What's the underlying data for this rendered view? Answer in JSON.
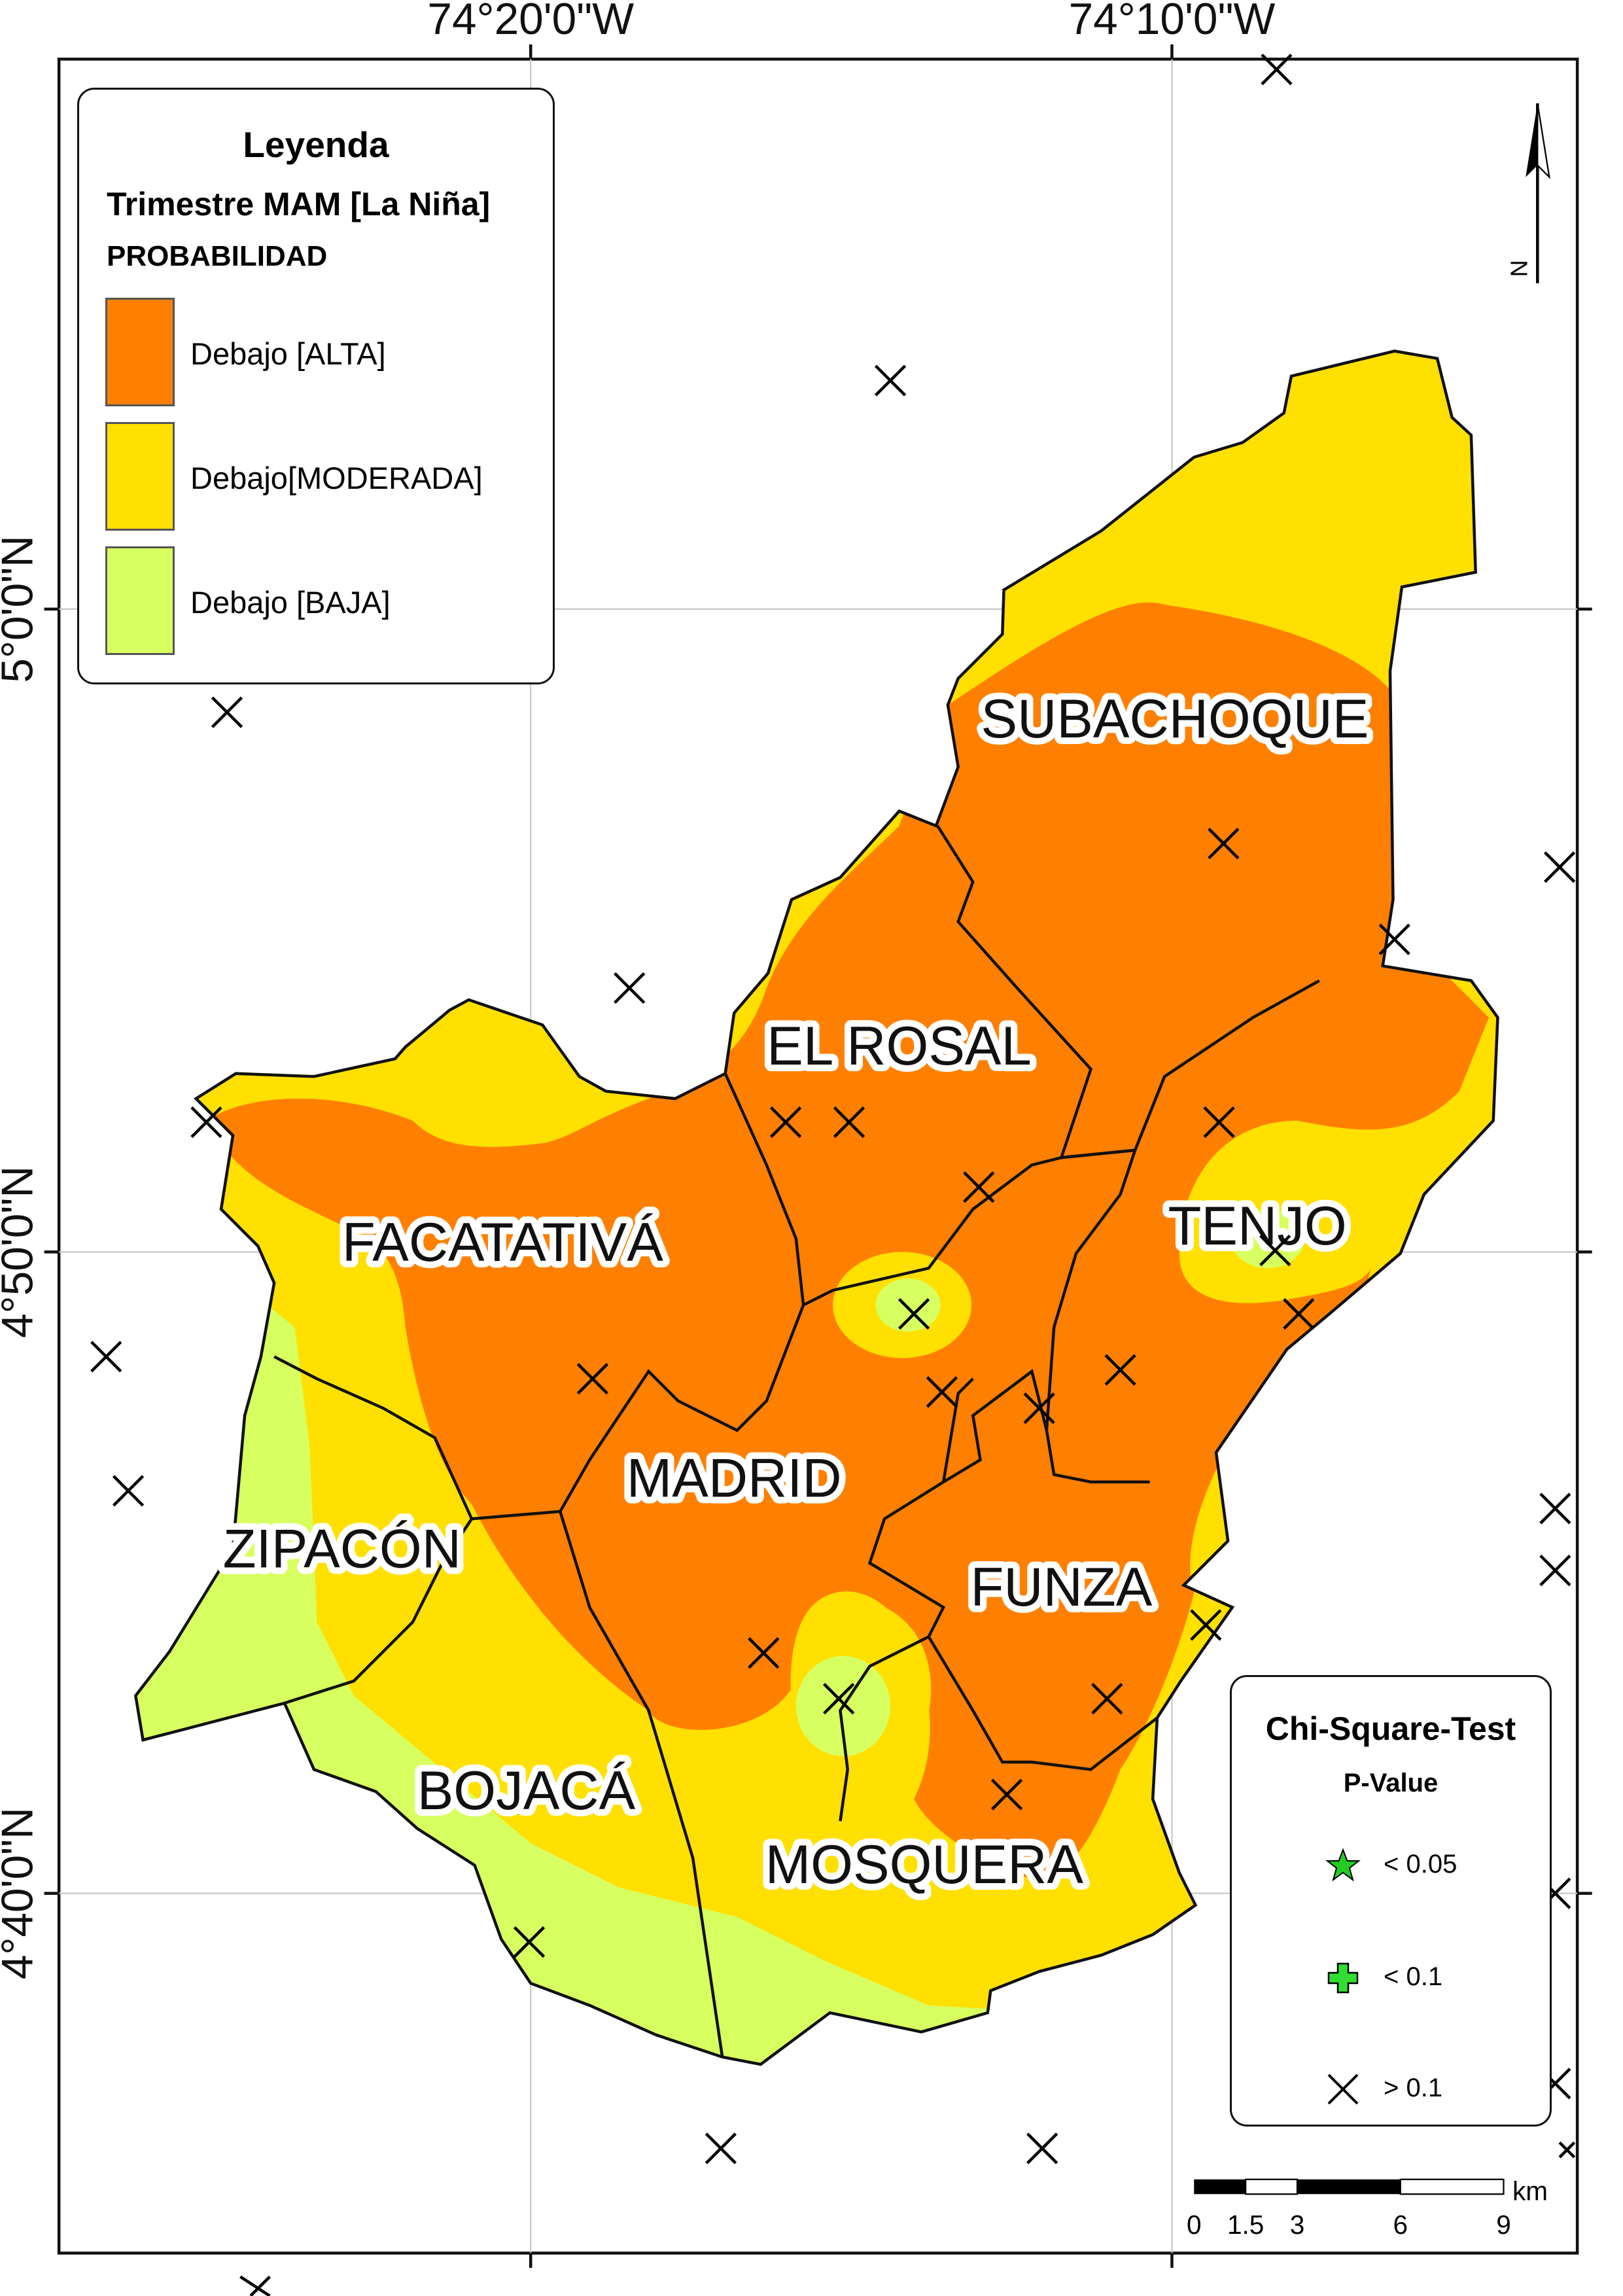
{
  "legend": {
    "title": "Leyenda",
    "subtitle": "Trimestre MAM [La Niña]",
    "category_title": "PROBABILIDAD",
    "items": [
      {
        "label": "Debajo [ALTA]",
        "color": "#ff8000"
      },
      {
        "label": "Debajo[MODERADA]",
        "color": "#ffe000"
      },
      {
        "label": "Debajo [BAJA]",
        "color": "#d8ff60"
      }
    ]
  },
  "chi_square": {
    "title": "Chi-Square-Test",
    "subtitle": "P-Value",
    "items": [
      {
        "symbol": "green-star-icon",
        "label": "< 0.05",
        "color": "#22cc22"
      },
      {
        "symbol": "green-plus-icon",
        "label": "< 0.1",
        "color": "#33dd33"
      },
      {
        "symbol": "black-x-icon",
        "label": "> 0.1",
        "color": "#000000"
      }
    ]
  },
  "graticule": {
    "lon_labels": [
      "74°20'0\"W",
      "74°10'0\"W"
    ],
    "lat_labels": [
      "5°0'0\"N",
      "4°50'0\"N",
      "4°40'0\"N"
    ]
  },
  "north_arrow": {
    "label": "N"
  },
  "scale_bar": {
    "ticks": [
      "0",
      "1.5",
      "3",
      "6",
      "9"
    ],
    "unit": "km"
  },
  "municipalities": [
    "SUBACHOQUE",
    "EL ROSAL",
    "TENJO",
    "FACATATIVÁ",
    "MADRID",
    "ZIPACÓN",
    "FUNZA",
    "BOJACÁ",
    "MOSQUERA"
  ]
}
